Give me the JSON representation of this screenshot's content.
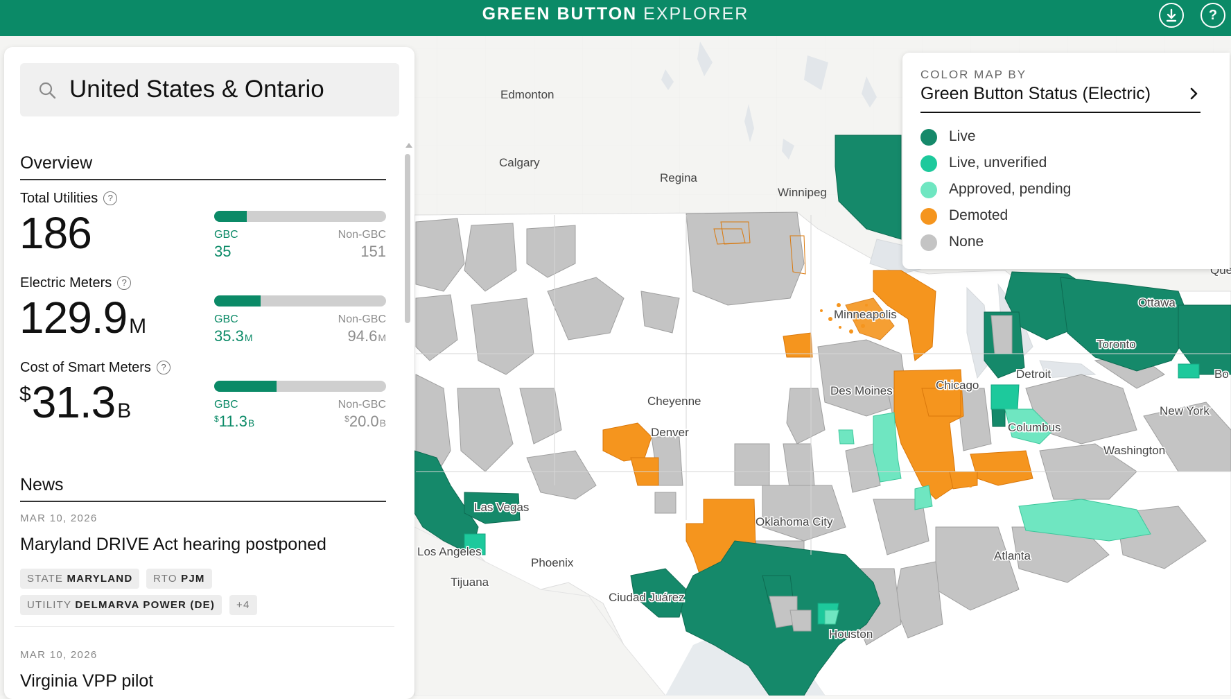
{
  "header": {
    "title_bold": "GREEN BUTTON",
    "title_light": "EXPLORER",
    "download_icon": "download-icon",
    "help_label": "?"
  },
  "colors": {
    "brand": "#0b8a67",
    "live": "#15896a",
    "live_unverified": "#1dc99c",
    "approved_pending": "#6fe6c1",
    "demoted": "#f5951e",
    "none": "#c4c4c4"
  },
  "search": {
    "value": "United States & Ontario"
  },
  "overview": {
    "heading": "Overview",
    "stats": [
      {
        "label": "Total Utilities",
        "value": "186",
        "unit": "",
        "prefix": "",
        "gbc_label": "GBC",
        "non_label": "Non-GBC",
        "gbc_value": "35",
        "gbc_unit": "",
        "non_value": "151",
        "non_unit": "",
        "gbc_share": 0.188
      },
      {
        "label": "Electric Meters",
        "value": "129.9",
        "unit": "M",
        "prefix": "",
        "gbc_label": "GBC",
        "non_label": "Non-GBC",
        "gbc_value": "35.3",
        "gbc_unit": "M",
        "non_value": "94.6",
        "non_unit": "M",
        "gbc_share": 0.272
      },
      {
        "label": "Cost of Smart Meters",
        "value": "31.3",
        "unit": "B",
        "prefix": "$",
        "gbc_label": "GBC",
        "non_label": "Non-GBC",
        "gbc_value": "11.3",
        "gbc_unit": "B",
        "gbc_prefix": "$",
        "non_value": "20.0",
        "non_unit": "B",
        "non_prefix": "$",
        "gbc_share": 0.361
      }
    ]
  },
  "news": {
    "heading": "News",
    "items": [
      {
        "date": "MAR 10, 2026",
        "title": "Maryland DRIVE Act hearing postponed",
        "tags": [
          {
            "key": "STATE",
            "value": "MARYLAND"
          },
          {
            "key": "RTO",
            "value": "PJM"
          },
          {
            "key": "UTILITY",
            "value": "DELMARVA POWER (DE)"
          }
        ],
        "more": "+4"
      },
      {
        "date": "MAR 10, 2026",
        "title": "Virginia VPP pilot"
      }
    ]
  },
  "legend": {
    "kicker": "COLOR MAP BY",
    "selected": "Green Button Status (Electric)",
    "items": [
      {
        "label": "Live",
        "color": "#15896a"
      },
      {
        "label": "Live, unverified",
        "color": "#1dc99c"
      },
      {
        "label": "Approved, pending",
        "color": "#6fe6c1"
      },
      {
        "label": "Demoted",
        "color": "#f5951e"
      },
      {
        "label": "None",
        "color": "#c4c4c4"
      }
    ]
  },
  "map": {
    "cities": [
      "Edmonton",
      "Calgary",
      "Regina",
      "Winnipeg",
      "Minneapolis",
      "Ottawa",
      "Toronto",
      "Detroit",
      "Bo",
      "Que",
      "Chicago",
      "Des Moines",
      "New York",
      "Cheyenne",
      "Denver",
      "Columbus",
      "Washington",
      "Las Vegas",
      "Oklahoma City",
      "Los Angeles",
      "Phoenix",
      "Tijuana",
      "Ciudad Juárez",
      "Atlanta",
      "Houston"
    ]
  }
}
